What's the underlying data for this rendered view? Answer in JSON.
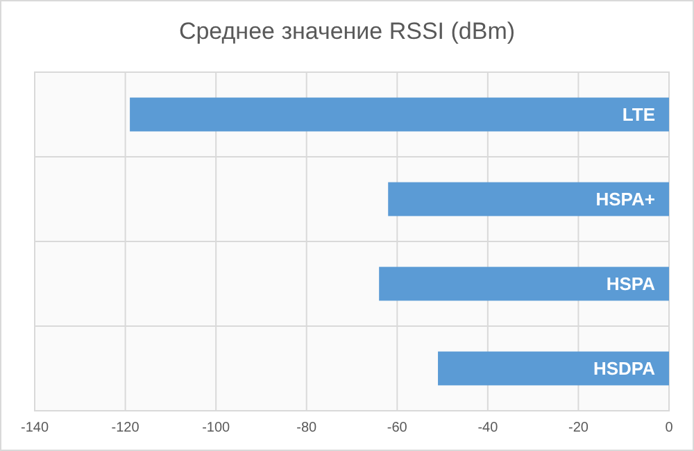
{
  "chart_data": {
    "type": "bar",
    "orientation": "horizontal",
    "title": "Среднее значение RSSI (dBm)",
    "categories": [
      "LTE",
      "HSPA+",
      "HSPA",
      "HSDPA"
    ],
    "values": [
      -119,
      -62,
      -64,
      -51
    ],
    "color": "#5b9bd5",
    "xlim": [
      -140,
      0
    ],
    "xticks": [
      -140,
      -120,
      -100,
      -80,
      -60,
      -40,
      -20,
      0
    ],
    "grid": true
  }
}
